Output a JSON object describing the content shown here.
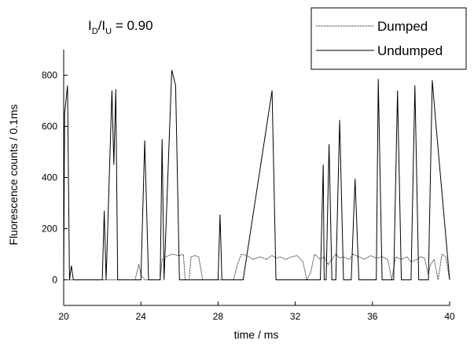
{
  "chart_data": {
    "type": "line",
    "title": "",
    "annotation": {
      "prefix": "I",
      "sub1": "D",
      "slash": "/I",
      "sub2": "U",
      "suffix": " = 0.90"
    },
    "xlabel": "time / ms",
    "ylabel": "Fluorescence counts / 0.1ms",
    "xlim": [
      20,
      40
    ],
    "ylim": [
      -100,
      900
    ],
    "xticks": [
      20,
      24,
      28,
      32,
      36,
      40
    ],
    "yticks": [
      0,
      200,
      400,
      600,
      800
    ],
    "grid": false,
    "legend_position": "top-right",
    "series": [
      {
        "name": "Dumped",
        "style": "dotted",
        "color": "#000000",
        "x": [
          20,
          21.8,
          22.0,
          22.4,
          22.5,
          22.8,
          23.7,
          23.9,
          24.0,
          24.2,
          25.0,
          25.1,
          25.3,
          25.6,
          26.0,
          26.2,
          26.3,
          26.5,
          26.6,
          26.8,
          27.0,
          27.2,
          27.6,
          28.1,
          28.3,
          28.8,
          29.0,
          29.2,
          29.5,
          29.8,
          30.2,
          30.5,
          30.8,
          31.0,
          31.2,
          31.5,
          31.8,
          32.1,
          32.4,
          32.6,
          32.8,
          33.0,
          33.3,
          33.5,
          33.7,
          33.9,
          34.1,
          34.3,
          34.5,
          34.8,
          35.0,
          35.3,
          35.6,
          35.9,
          36.2,
          36.5,
          36.8,
          37.0,
          37.2,
          37.5,
          37.8,
          38.0,
          38.3,
          38.5,
          38.7,
          38.9,
          39.0,
          39.2,
          39.4,
          39.6,
          39.8,
          40.0
        ],
        "values": [
          0,
          0,
          0,
          0,
          0,
          0,
          0,
          60,
          20,
          0,
          0,
          80,
          90,
          100,
          95,
          100,
          0,
          0,
          90,
          95,
          90,
          0,
          0,
          0,
          0,
          0,
          60,
          100,
          95,
          80,
          90,
          80,
          95,
          85,
          90,
          80,
          90,
          95,
          70,
          0,
          30,
          100,
          80,
          90,
          60,
          80,
          100,
          85,
          90,
          80,
          100,
          90,
          80,
          95,
          85,
          90,
          80,
          0,
          90,
          80,
          90,
          70,
          80,
          90,
          85,
          20,
          60,
          80,
          0,
          100,
          90,
          0
        ]
      },
      {
        "name": "Undumped",
        "style": "solid",
        "color": "#000000",
        "x": [
          20,
          20.05,
          20.2,
          20.3,
          20.4,
          20.5,
          22.0,
          22.1,
          22.2,
          22.5,
          22.6,
          22.7,
          22.8,
          24.0,
          24.2,
          24.4,
          25.0,
          25.1,
          25.2,
          25.6,
          25.8,
          26.0,
          28.0,
          28.1,
          28.2,
          29.3,
          30.8,
          31.0,
          33.3,
          33.45,
          33.5,
          33.6,
          33.75,
          33.9,
          34.1,
          34.3,
          34.5,
          34.9,
          35.1,
          35.3,
          36.2,
          36.3,
          36.5,
          37.1,
          37.3,
          37.5,
          38.0,
          38.2,
          38.4,
          38.9,
          39.1,
          39.3,
          40.0
        ],
        "values": [
          0,
          650,
          760,
          0,
          55,
          0,
          0,
          270,
          0,
          740,
          450,
          745,
          0,
          0,
          545,
          0,
          0,
          550,
          0,
          820,
          760,
          0,
          0,
          255,
          0,
          0,
          740,
          0,
          0,
          450,
          0,
          0,
          530,
          0,
          0,
          625,
          0,
          0,
          395,
          0,
          0,
          785,
          0,
          0,
          740,
          0,
          0,
          760,
          0,
          0,
          780,
          600,
          0
        ]
      }
    ]
  }
}
